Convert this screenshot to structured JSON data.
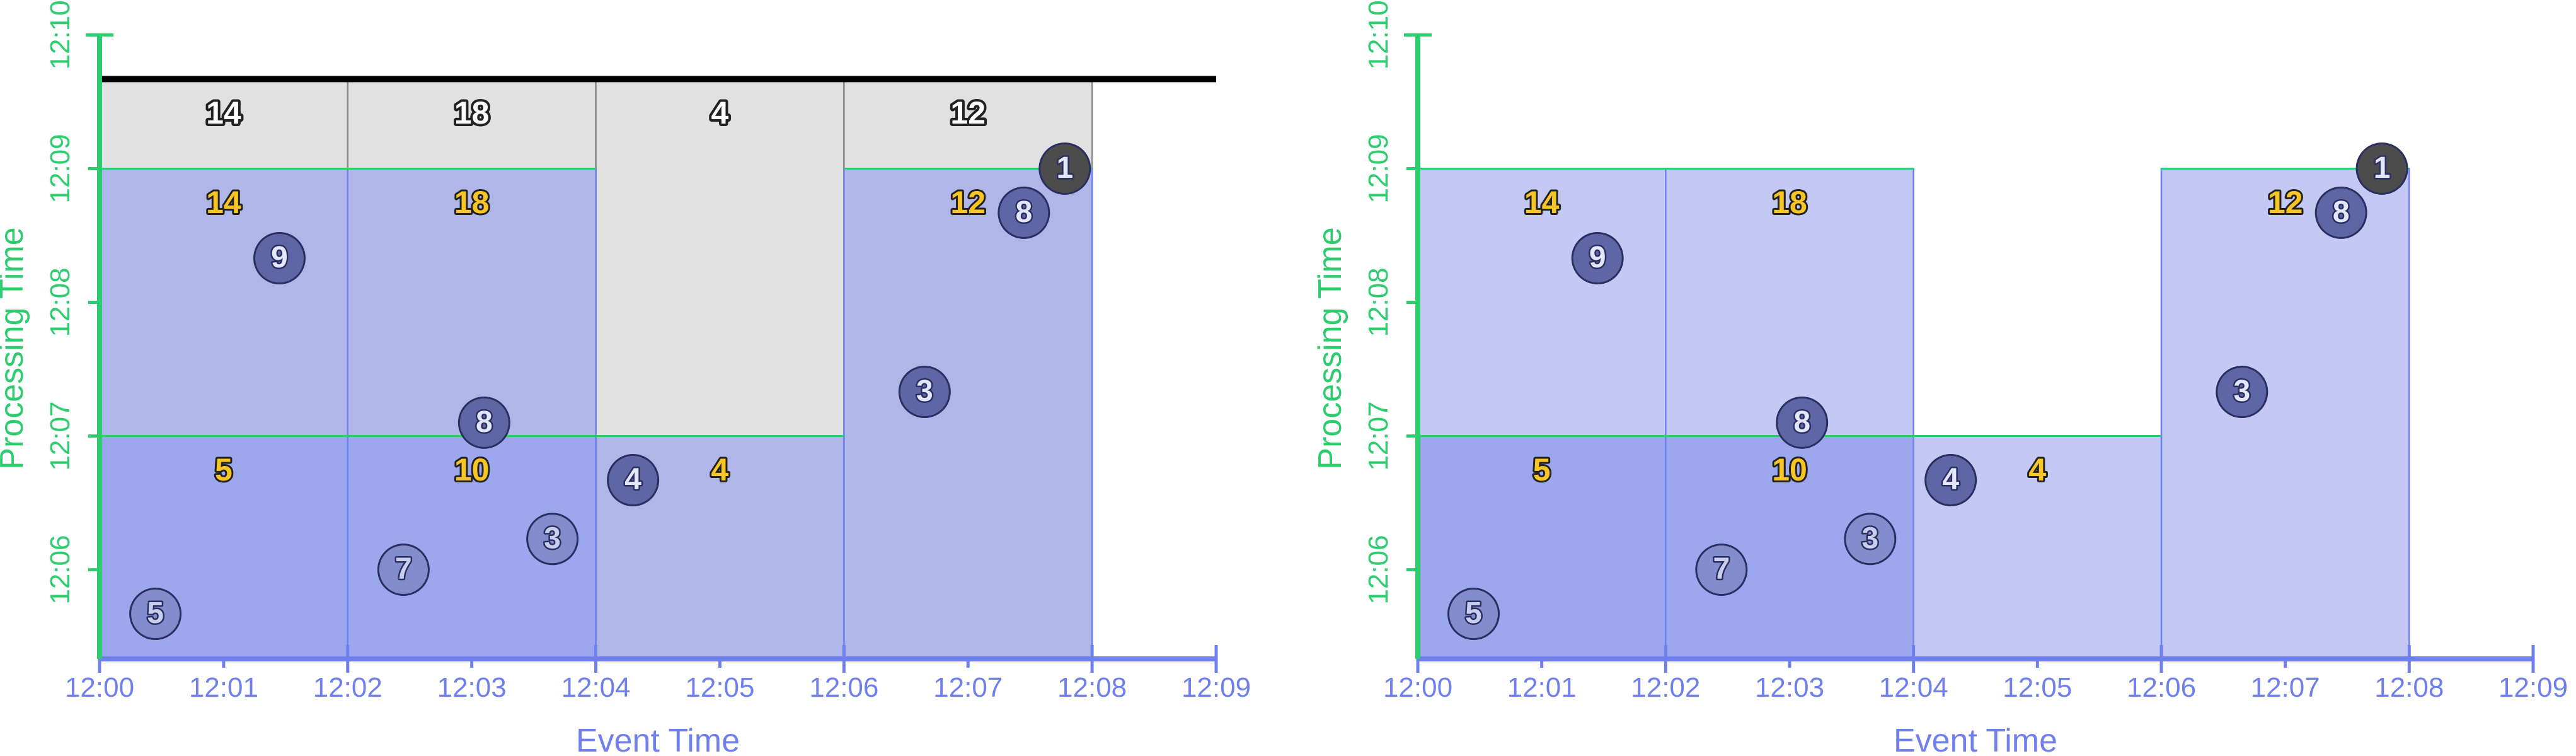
{
  "chart_data": [
    {
      "type": "scatter",
      "title": "",
      "xlabel": "Event Time",
      "ylabel": "Processing Time",
      "x_ticks": [
        "12:00",
        "12:01",
        "12:02",
        "12:03",
        "12:04",
        "12:05",
        "12:06",
        "12:07",
        "12:08",
        "12:09"
      ],
      "y_ticks": [
        "12:06",
        "12:07",
        "12:08",
        "12:09",
        "12:10"
      ],
      "xlim": [
        "12:00",
        "12:09"
      ],
      "ylim": [
        "12:05:20",
        "12:10:10"
      ],
      "watermark_line_y": 9.67,
      "windows": [
        {
          "x0": 0,
          "x1": 2,
          "y_top": 9.67,
          "fill": "gray",
          "sum": "14",
          "label_style": "outlined"
        },
        {
          "x0": 2,
          "x1": 4,
          "y_top": 9.67,
          "fill": "gray",
          "sum": "18",
          "label_style": "outlined"
        },
        {
          "x0": 4,
          "x1": 6,
          "y_top": 9.67,
          "fill": "gray",
          "sum": "4",
          "label_style": "outlined"
        },
        {
          "x0": 6,
          "x1": 8,
          "y_top": 9.67,
          "fill": "gray",
          "sum": "12",
          "label_style": "outlined"
        },
        {
          "x0": 0,
          "x1": 4,
          "y_top": 9.0,
          "fill": "light",
          "sum": "",
          "label_style": "none"
        },
        {
          "x0": 6,
          "x1": 8,
          "y_top": 9.0,
          "fill": "light",
          "sum": "",
          "label_style": "none"
        },
        {
          "x0": 4,
          "x1": 6,
          "y_top": 7.0,
          "fill": "light",
          "sum": "",
          "label_style": "none"
        },
        {
          "x0": 0,
          "x1": 4,
          "y_top": 7.0,
          "fill": "dark",
          "sum": "",
          "label_style": "none"
        }
      ],
      "sum_labels": [
        {
          "x": 1,
          "y": 9.4,
          "text": "14",
          "style": "outlined"
        },
        {
          "x": 3,
          "y": 9.4,
          "text": "18",
          "style": "outlined"
        },
        {
          "x": 5,
          "y": 9.4,
          "text": "4",
          "style": "outlined"
        },
        {
          "x": 7,
          "y": 9.4,
          "text": "12",
          "style": "outlined"
        },
        {
          "x": 1,
          "y": 8.73,
          "text": "14",
          "style": "yellow"
        },
        {
          "x": 3,
          "y": 8.73,
          "text": "18",
          "style": "yellow"
        },
        {
          "x": 7,
          "y": 8.73,
          "text": "12",
          "style": "yellow"
        },
        {
          "x": 1,
          "y": 6.73,
          "text": "5",
          "style": "yellow"
        },
        {
          "x": 3,
          "y": 6.73,
          "text": "10",
          "style": "yellow"
        },
        {
          "x": 5,
          "y": 6.73,
          "text": "4",
          "style": "yellow"
        }
      ],
      "points": [
        {
          "x": 0.45,
          "y": 5.67,
          "value": "5",
          "style": "faded"
        },
        {
          "x": 1.45,
          "y": 8.33,
          "value": "9",
          "style": "normal"
        },
        {
          "x": 2.45,
          "y": 6.0,
          "value": "7",
          "style": "faded"
        },
        {
          "x": 3.1,
          "y": 7.1,
          "value": "8",
          "style": "normal"
        },
        {
          "x": 3.65,
          "y": 6.23,
          "value": "3",
          "style": "faded"
        },
        {
          "x": 4.3,
          "y": 6.67,
          "value": "4",
          "style": "normal"
        },
        {
          "x": 6.65,
          "y": 7.33,
          "value": "3",
          "style": "normal"
        },
        {
          "x": 7.45,
          "y": 8.67,
          "value": "8",
          "style": "normal"
        },
        {
          "x": 7.78,
          "y": 9.0,
          "value": "1",
          "style": "dark"
        }
      ]
    },
    {
      "type": "scatter",
      "title": "",
      "xlabel": "Event Time",
      "ylabel": "Processing Time",
      "x_ticks": [
        "12:00",
        "12:01",
        "12:02",
        "12:03",
        "12:04",
        "12:05",
        "12:06",
        "12:07",
        "12:08",
        "12:09"
      ],
      "y_ticks": [
        "12:06",
        "12:07",
        "12:08",
        "12:09",
        "12:10"
      ],
      "xlim": [
        "12:00",
        "12:09"
      ],
      "ylim": [
        "12:05:20",
        "12:10:10"
      ],
      "watermark_line_y": null,
      "windows": [
        {
          "x0": 0,
          "x1": 4,
          "y_top": 9.0,
          "fill": "lighter",
          "sum": "",
          "label_style": "none"
        },
        {
          "x0": 6,
          "x1": 8,
          "y_top": 9.0,
          "fill": "lighter",
          "sum": "",
          "label_style": "none"
        },
        {
          "x0": 4,
          "x1": 6,
          "y_top": 7.0,
          "fill": "lighter",
          "sum": "",
          "label_style": "none"
        },
        {
          "x0": 0,
          "x1": 4,
          "y_top": 7.0,
          "fill": "dark",
          "sum": "",
          "label_style": "none"
        }
      ],
      "sum_labels": [
        {
          "x": 1,
          "y": 8.73,
          "text": "14",
          "style": "yellow"
        },
        {
          "x": 3,
          "y": 8.73,
          "text": "18",
          "style": "yellow"
        },
        {
          "x": 7,
          "y": 8.73,
          "text": "12",
          "style": "yellow"
        },
        {
          "x": 1,
          "y": 6.73,
          "text": "5",
          "style": "yellow"
        },
        {
          "x": 3,
          "y": 6.73,
          "text": "10",
          "style": "yellow"
        },
        {
          "x": 5,
          "y": 6.73,
          "text": "4",
          "style": "yellow"
        }
      ],
      "points": [
        {
          "x": 0.45,
          "y": 5.67,
          "value": "5",
          "style": "faded"
        },
        {
          "x": 1.45,
          "y": 8.33,
          "value": "9",
          "style": "normal"
        },
        {
          "x": 2.45,
          "y": 6.0,
          "value": "7",
          "style": "faded"
        },
        {
          "x": 3.1,
          "y": 7.1,
          "value": "8",
          "style": "normal"
        },
        {
          "x": 3.65,
          "y": 6.23,
          "value": "3",
          "style": "faded"
        },
        {
          "x": 4.3,
          "y": 6.67,
          "value": "4",
          "style": "normal"
        },
        {
          "x": 6.65,
          "y": 7.33,
          "value": "3",
          "style": "normal"
        },
        {
          "x": 7.45,
          "y": 8.67,
          "value": "8",
          "style": "normal"
        },
        {
          "x": 7.78,
          "y": 9.0,
          "value": "1",
          "style": "dark"
        }
      ]
    }
  ],
  "colors": {
    "x_axis": "#6f80ee",
    "y_axis": "#2dcc6e",
    "grid_line": "#2dcc6e",
    "window_border": "#6f80ee",
    "gray_fill": "#e1e1e1",
    "gray_border": "#8a8a8a",
    "light_fill": "#b0b7e8",
    "lighter_fill": "#c4c9f4",
    "dark_fill": "#9ca7ee",
    "watermark_line": "#000000",
    "yellow_label": "#f7c624",
    "label_outline": "#222222",
    "point_fill": "#5e66a6",
    "point_faded_fill": "#7f87c6",
    "point_dark_fill": "#4c4c4c"
  }
}
